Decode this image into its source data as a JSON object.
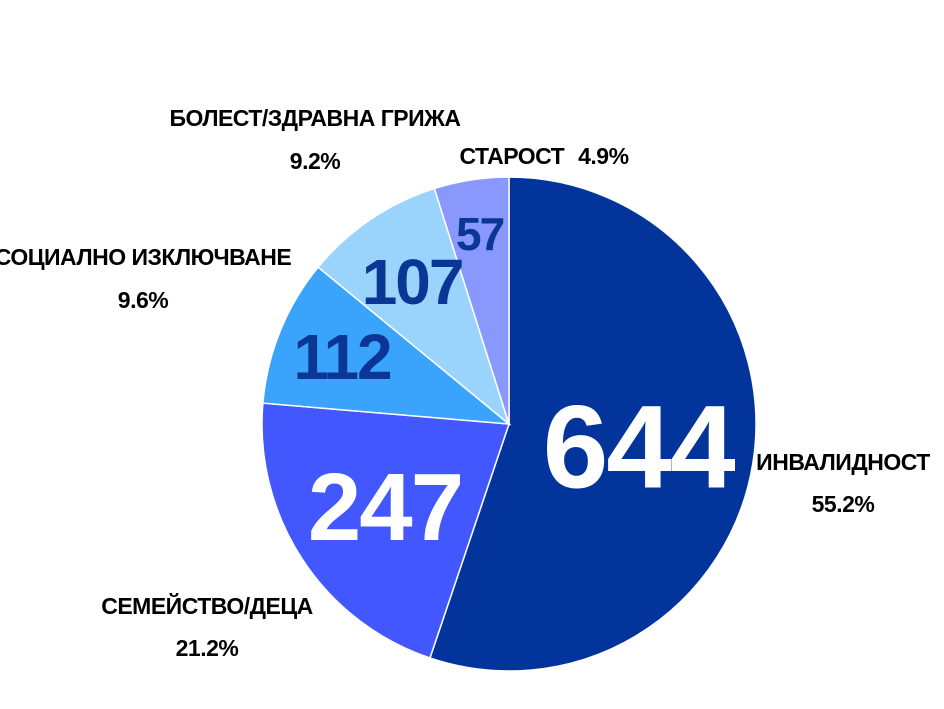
{
  "chart_data": {
    "type": "pie",
    "start_angle_deg": 0,
    "direction": "clockwise",
    "slices": [
      {
        "category": "ИНВАЛИДНОСТ",
        "value": 644,
        "percent_label": "55.2%",
        "color": "#02349b",
        "value_color": "#ffffff"
      },
      {
        "category": "СЕМЕЙСТВО/ДЕЦА",
        "value": 247,
        "percent_label": "21.2%",
        "color": "#4257fd",
        "value_color": "#ffffff"
      },
      {
        "category": "СОЦИАЛНО ИЗКЛЮЧВАНЕ",
        "value": 112,
        "percent_label": "9.6%",
        "color": "#3aa3fb",
        "value_color": "#0a3696"
      },
      {
        "category": "БОЛЕСТ/ЗДРАВНА ГРИЖА",
        "value": 107,
        "percent_label": "9.2%",
        "color": "#9ad3fc",
        "value_color": "#0a3696"
      },
      {
        "category": "СТАРОСТ",
        "value": 57,
        "percent_label": "4.9%",
        "color": "#8898fd",
        "value_color": "#0a3696"
      }
    ]
  }
}
